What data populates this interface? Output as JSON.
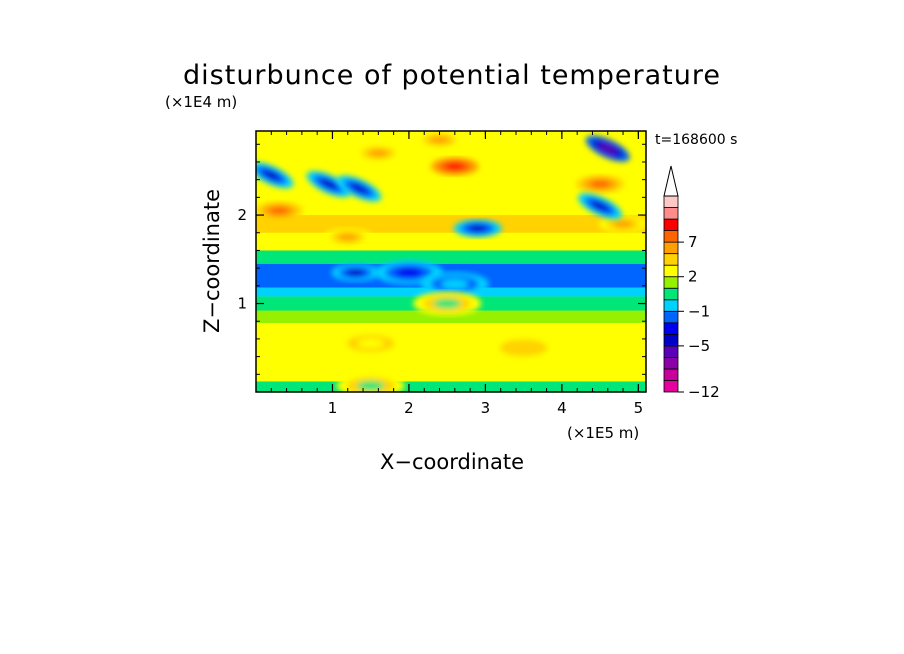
{
  "chart_data": {
    "type": "heatmap",
    "title": "disturbunce of potential temperature",
    "xlabel": "X−coordinate",
    "ylabel": "Z−coordinate",
    "x_unit_label": "(×1E5 m)",
    "y_unit_label": "(×1E4 m)",
    "time_label": "t=168600 s",
    "xlim": [
      0,
      5.1
    ],
    "ylim": [
      0,
      2.95
    ],
    "x_ticks": [
      1,
      2,
      3,
      4,
      5
    ],
    "x_tick_labels": [
      "1",
      "2",
      "3",
      "4",
      "5"
    ],
    "y_ticks": [
      1,
      2
    ],
    "y_tick_labels": [
      "1",
      "2"
    ],
    "colorbar": {
      "levels": [
        -12,
        -11,
        -9,
        -7,
        -5,
        -4,
        -3,
        -1,
        0,
        1,
        2,
        3,
        5,
        7,
        9,
        11,
        13
      ],
      "label_values": [
        -12,
        -5,
        -1,
        2,
        7
      ],
      "labels": [
        "−12",
        "−5",
        "−1",
        "2",
        "7"
      ],
      "colors": [
        "#e6009f",
        "#c8009c",
        "#8c00a8",
        "#5a00b8",
        "#0000c8",
        "#0000f0",
        "#0064ff",
        "#00d2ff",
        "#00e678",
        "#96f000",
        "#ffff00",
        "#ffd200",
        "#ffa000",
        "#ff6400",
        "#ff0000",
        "#ff8c8c",
        "#ffc8c8"
      ],
      "extend_max": true
    },
    "features": [
      {
        "x": 2.6,
        "z": 2.55,
        "value": 9
      },
      {
        "x": 2.4,
        "z": 2.85,
        "value": 5
      },
      {
        "x": 1.6,
        "z": 2.7,
        "value": 5
      },
      {
        "x": 0.3,
        "z": 2.05,
        "value": 7
      },
      {
        "x": 1.2,
        "z": 1.75,
        "value": 5
      },
      {
        "x": 4.5,
        "z": 2.35,
        "value": 7
      },
      {
        "x": 4.8,
        "z": 1.9,
        "value": 5
      },
      {
        "x": 0.2,
        "z": 2.45,
        "value": -5
      },
      {
        "x": 0.95,
        "z": 2.35,
        "value": -5
      },
      {
        "x": 1.35,
        "z": 2.3,
        "value": -5
      },
      {
        "x": 2.9,
        "z": 1.85,
        "value": -5
      },
      {
        "x": 4.6,
        "z": 2.75,
        "value": -7
      },
      {
        "x": 4.5,
        "z": 2.1,
        "value": -5
      },
      {
        "x": 1.3,
        "z": 1.35,
        "value": -5
      },
      {
        "x": 2.0,
        "z": 1.35,
        "value": -4
      },
      {
        "x": 2.6,
        "z": 1.22,
        "value": -1
      },
      {
        "x": 2.5,
        "z": 1.0,
        "value": 0
      },
      {
        "x": 1.5,
        "z": 0.55,
        "value": 2
      },
      {
        "x": 3.5,
        "z": 0.5,
        "value": 3
      },
      {
        "x": 1.5,
        "z": 0.07,
        "value": 0
      }
    ]
  }
}
